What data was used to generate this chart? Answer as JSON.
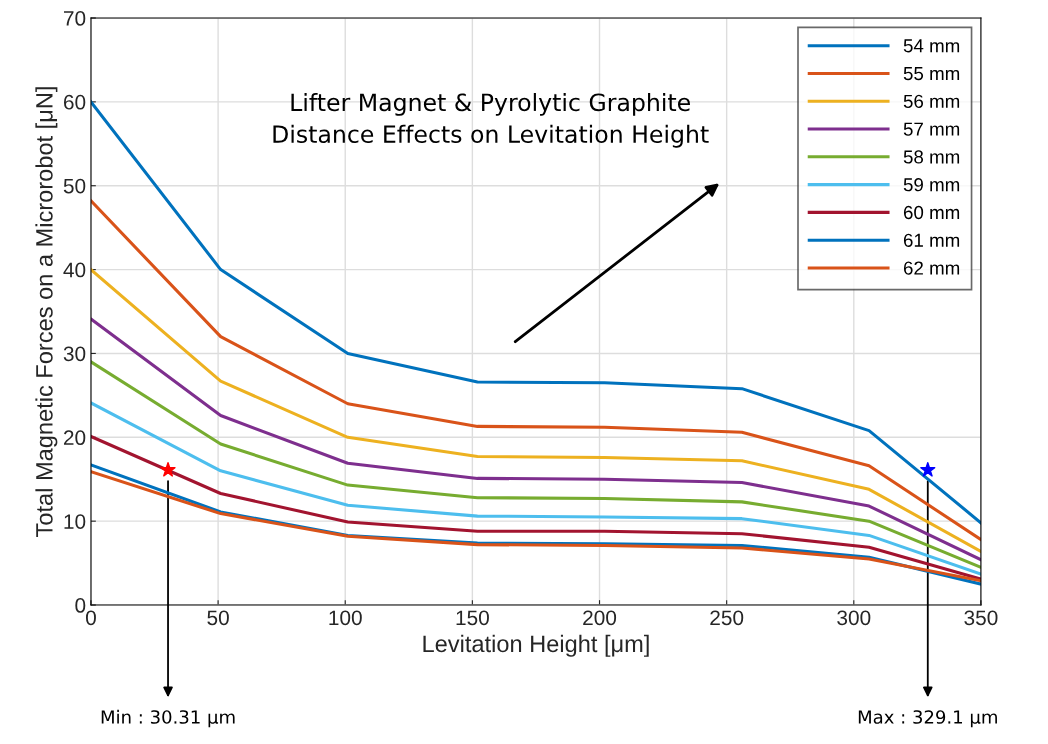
{
  "chart_data": {
    "type": "line",
    "xlabel": "Levitation Height [μm]",
    "ylabel": "Total Magnetic Forces on a Microrobot [μN]",
    "x": [
      0,
      51,
      101,
      152,
      202,
      256,
      306,
      350
    ],
    "series": [
      {
        "name": "54 mm",
        "color": "#0072bd",
        "values": [
          60,
          40,
          30,
          26.6,
          26.5,
          25.8,
          20.8,
          9.8
        ]
      },
      {
        "name": "55 mm",
        "color": "#d95319",
        "values": [
          48.2,
          32,
          24,
          21.3,
          21.2,
          20.6,
          16.6,
          7.8
        ]
      },
      {
        "name": "56 mm",
        "color": "#edb120",
        "values": [
          40,
          26.7,
          20,
          17.7,
          17.6,
          17.2,
          13.8,
          6.4
        ]
      },
      {
        "name": "57 mm",
        "color": "#7e2f8e",
        "values": [
          34.1,
          22.6,
          16.9,
          15.1,
          15.0,
          14.6,
          11.8,
          5.4
        ]
      },
      {
        "name": "58 mm",
        "color": "#77ac30",
        "values": [
          29,
          19.2,
          14.3,
          12.8,
          12.7,
          12.3,
          10,
          4.5
        ]
      },
      {
        "name": "59 mm",
        "color": "#4dbeee",
        "values": [
          24.1,
          16,
          11.9,
          10.6,
          10.5,
          10.3,
          8.3,
          3.7
        ]
      },
      {
        "name": "60 mm",
        "color": "#a2142f",
        "values": [
          20.1,
          13.3,
          9.9,
          8.8,
          8.8,
          8.5,
          6.9,
          3.1
        ]
      },
      {
        "name": "61 mm",
        "color": "#0072bd",
        "values": [
          16.7,
          11.1,
          8.3,
          7.4,
          7.3,
          7.1,
          5.7,
          2.5
        ]
      },
      {
        "name": "62 mm",
        "color": "#d95319",
        "values": [
          15.9,
          10.9,
          8.2,
          7.2,
          7.1,
          6.8,
          5.5,
          2.9
        ]
      },
      {
        "type": "scatter",
        "x": [
          30.31
        ],
        "color": "#ff0000",
        "values": [
          16.1
        ],
        "marker": "star"
      },
      {
        "type": "scatter",
        "x": [
          329.1
        ],
        "color": "#0000ff",
        "values": [
          16.1
        ],
        "marker": "star"
      }
    ],
    "annotations": [
      "Lifter Magnet & Pyrolytic Graphite\nDistance Effects on Levitation Height",
      "Min : 30.31 μm",
      "Max : 329.1 μm"
    ],
    "xlim": [
      0,
      350
    ],
    "xticks": [
      0,
      50,
      100,
      150,
      200,
      250,
      300,
      350
    ],
    "ylim": [
      0,
      70
    ],
    "yticks": [
      0,
      10,
      20,
      30,
      40,
      50,
      60,
      70
    ],
    "grid": true,
    "legend": "top right",
    "marker": "none",
    "line_style": "solid"
  }
}
